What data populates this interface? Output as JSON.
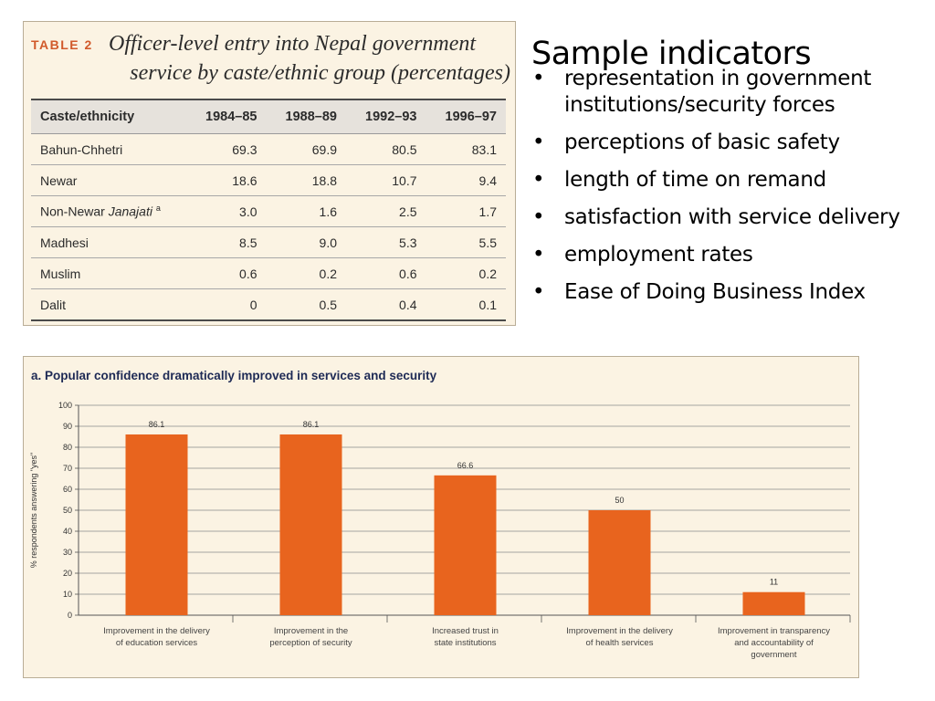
{
  "table": {
    "number": "TABLE 2",
    "title_line1": "Officer-level entry into Nepal government",
    "title_line2": "service by caste/ethnic group (percentages)",
    "columns": [
      "Caste/ethnicity",
      "1984–85",
      "1988–89",
      "1992–93",
      "1996–97"
    ],
    "rows": [
      {
        "label": "Bahun-Chhetri",
        "values": [
          "69.3",
          "69.9",
          "80.5",
          "83.1"
        ]
      },
      {
        "label": "Newar",
        "values": [
          "18.6",
          "18.8",
          "10.7",
          "9.4"
        ]
      },
      {
        "label": "Non-Newar",
        "label_italic": "Janajati",
        "note": "a",
        "values": [
          "3.0",
          "1.6",
          "2.5",
          "1.7"
        ]
      },
      {
        "label": "Madhesi",
        "values": [
          "8.5",
          "9.0",
          "5.3",
          "5.5"
        ]
      },
      {
        "label": "Muslim",
        "values": [
          "0.6",
          "0.2",
          "0.6",
          "0.2"
        ]
      },
      {
        "label": "Dalit",
        "values": [
          "0",
          "0.5",
          "0.4",
          "0.1"
        ]
      }
    ]
  },
  "slide": {
    "title": "Sample indicators",
    "bullets": [
      "representation in government institutions/security forces",
      "perceptions of basic safety",
      "length of time on remand",
      "satisfaction with service delivery",
      "employment rates",
      "Ease of Doing Business Index"
    ]
  },
  "chart_data": {
    "type": "bar",
    "title": "a.  Popular confidence dramatically improved in services and security",
    "ylabel": "% respondents answering \"yes\"",
    "ylim": [
      0,
      100
    ],
    "yticks": [
      0,
      10,
      20,
      30,
      40,
      50,
      60,
      70,
      80,
      90,
      100
    ],
    "grid": true,
    "bar_color": "#e8641e",
    "categories": [
      [
        "Improvement in the delivery",
        "of education services"
      ],
      [
        "Improvement in the",
        "perception of security"
      ],
      [
        "Increased trust in",
        "state institutions"
      ],
      [
        "Improvement in the delivery",
        "of health services"
      ],
      [
        "Improvement in  transparency",
        "and accountability of",
        "government"
      ]
    ],
    "values": [
      86.1,
      86.1,
      66.6,
      50,
      11
    ],
    "value_labels": [
      "86.1",
      "86.1",
      "66.6",
      "50",
      "11"
    ]
  }
}
